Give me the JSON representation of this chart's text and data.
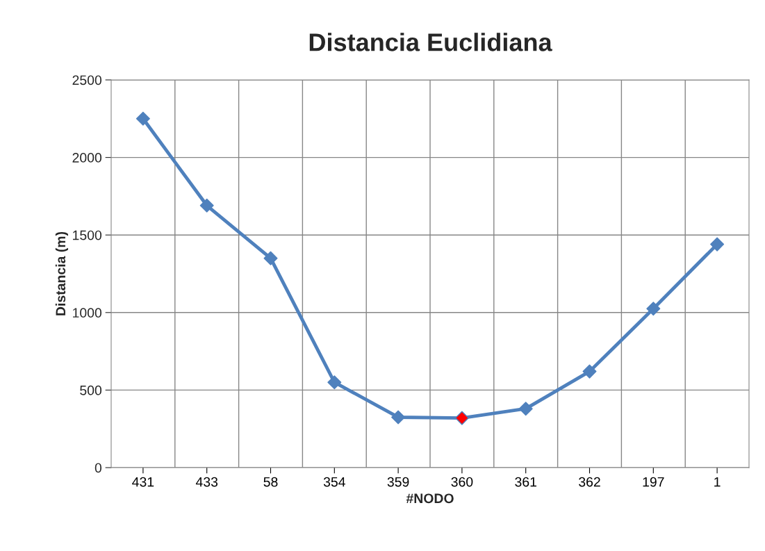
{
  "chart_data": {
    "type": "line",
    "title": "Distancia Euclidiana",
    "xlabel": "#NODO",
    "ylabel": "Distancia (m)",
    "categories": [
      "431",
      "433",
      "58",
      "354",
      "359",
      "360",
      "361",
      "362",
      "197",
      "1"
    ],
    "series": [
      {
        "color": "#4f81bd",
        "colors": [
          "#4f81bd",
          "#4f81bd",
          "#4f81bd",
          "#4f81bd",
          "#4f81bd",
          "#ff0000",
          "#4f81bd",
          "#4f81bd",
          "#4f81bd",
          "#4f81bd"
        ],
        "values": [
          2250,
          1690,
          1350,
          550,
          325,
          320,
          380,
          620,
          1025,
          1440
        ]
      }
    ],
    "ylim": [
      0,
      2500
    ],
    "yticks": [
      0,
      500,
      1000,
      1500,
      2000,
      2500
    ],
    "grid": true,
    "marker": "diamond",
    "line_style": "solid",
    "legend": false
  }
}
